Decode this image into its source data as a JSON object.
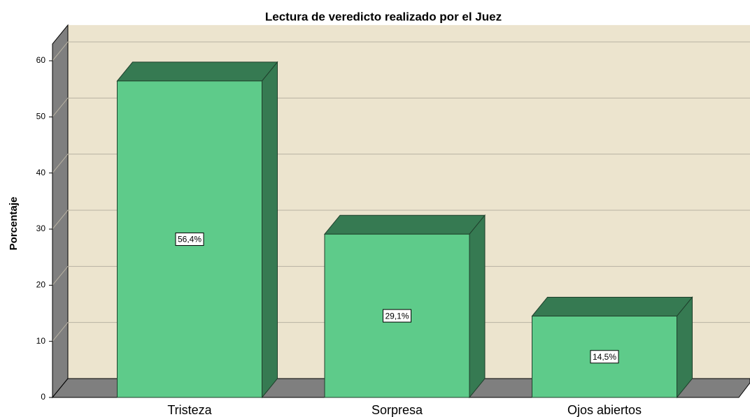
{
  "chart_data": {
    "type": "bar3d",
    "title": "Lectura de veredicto realizado por el Juez",
    "y_label": "Porcentaje",
    "categories": [
      "Tristeza",
      "Sorpresa",
      "Ojos abiertos"
    ],
    "values": [
      56.4,
      29.1,
      14.5
    ],
    "value_labels": [
      "56,4%",
      "29,1%",
      "14,5%"
    ],
    "color": "#5ecb8a",
    "side_color": "#367a52",
    "ylim": [
      0,
      63
    ],
    "yticks": [
      0,
      10,
      20,
      30,
      40,
      50,
      60
    ],
    "grid": true
  }
}
